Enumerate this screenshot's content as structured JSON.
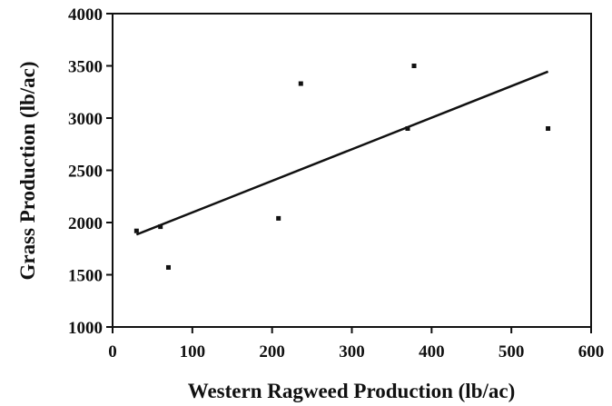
{
  "chart_data": {
    "type": "scatter",
    "title": "",
    "xlabel": "Western Ragweed Production (lb/ac)",
    "ylabel": "Grass Production (lb/ac)",
    "xlim": [
      0,
      600
    ],
    "ylim": [
      1000,
      4000
    ],
    "xticks": [
      "0",
      "100",
      "200",
      "300",
      "400",
      "500",
      "600"
    ],
    "yticks": [
      "1000",
      "1500",
      "2000",
      "2500",
      "3000",
      "3500",
      "4000"
    ],
    "grid": false,
    "legend": "none",
    "point_color": "#111111",
    "series": [
      {
        "points": [
          {
            "x": 30,
            "y": 1920
          },
          {
            "x": 60,
            "y": 1960
          },
          {
            "x": 70,
            "y": 1570
          },
          {
            "x": 208,
            "y": 2040
          },
          {
            "x": 236,
            "y": 3330
          },
          {
            "x": 370,
            "y": 2900
          },
          {
            "x": 378,
            "y": 3500
          },
          {
            "x": 546,
            "y": 2900
          }
        ]
      }
    ],
    "trendline": {
      "x": [
        30,
        546
      ],
      "y": [
        1885,
        3445
      ]
    }
  }
}
